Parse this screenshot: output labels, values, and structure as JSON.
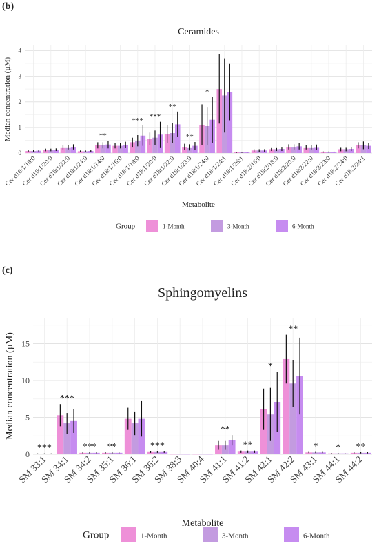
{
  "panels": [
    {
      "panel_label": "(b)",
      "chart_title": "Ceramides",
      "xlabel": "Metabolite",
      "ylabel": "Median concentration (µM)",
      "legend_title": "Group"
    },
    {
      "panel_label": "(c)",
      "chart_title": "Sphingomyelins",
      "xlabel": "Metabolite",
      "ylabel": "Median concentration (µM)",
      "legend_title": "Group"
    }
  ],
  "group_colors": {
    "1-Month": "#ee90d8",
    "3-Month": "#c39be0",
    "6-Month": "#c68cf0"
  },
  "chart_data": [
    {
      "type": "bar",
      "title": "Ceramides",
      "xlabel": "Metabolite",
      "ylabel": "Median concentration (µM)",
      "ylim": [
        0,
        4.2
      ],
      "yticks": [
        0,
        1,
        2,
        3,
        4
      ],
      "grid": true,
      "legend_position": "bottom",
      "categories": [
        "Cer d16:1/18:0",
        "Cer d16:1/20:0",
        "Cer d16:1/22:0",
        "Cer d16:1/24:0",
        "Cer d18:1/14:0",
        "Cer d18:1/16:0",
        "Cer d18:1/18:0",
        "Cer d18:1/20:0",
        "Cer d18:1/22:0",
        "Cer d18:1/23:0",
        "Cer d18:1/24:0",
        "Cer d18:1/24:1",
        "Cer d18:1/26:1",
        "Cer d18:2/16:0",
        "Cer d18:2/18:0",
        "Cer d18:2/20:0",
        "Cer d18:2/22:0",
        "Cer d18:2/23:0",
        "Cer d18:2/24:0",
        "Cer d18:2/24:1"
      ],
      "significance": [
        "",
        "",
        "",
        "",
        "**",
        "",
        "***",
        "***",
        "**",
        "**",
        "*",
        "",
        "",
        "",
        "",
        "",
        "",
        "",
        "",
        ""
      ],
      "series": [
        {
          "name": "1-Month",
          "values": [
            0.08,
            0.12,
            0.22,
            0.07,
            0.3,
            0.28,
            0.42,
            0.55,
            0.75,
            0.24,
            1.1,
            2.5,
            0.03,
            0.1,
            0.15,
            0.24,
            0.22,
            0.04,
            0.15,
            0.3
          ],
          "err": [
            0.04,
            0.05,
            0.08,
            0.03,
            0.12,
            0.1,
            0.18,
            0.25,
            0.35,
            0.12,
            0.8,
            1.35,
            0.02,
            0.05,
            0.07,
            0.1,
            0.08,
            0.02,
            0.08,
            0.12
          ]
        },
        {
          "name": "3-Month",
          "values": [
            0.08,
            0.12,
            0.22,
            0.07,
            0.3,
            0.28,
            0.48,
            0.6,
            0.78,
            0.22,
            1.05,
            2.25,
            0.03,
            0.1,
            0.15,
            0.24,
            0.22,
            0.04,
            0.15,
            0.3
          ],
          "err": [
            0.04,
            0.05,
            0.08,
            0.03,
            0.12,
            0.1,
            0.22,
            0.28,
            0.4,
            0.12,
            0.75,
            1.45,
            0.02,
            0.05,
            0.07,
            0.1,
            0.08,
            0.02,
            0.08,
            0.15
          ]
        },
        {
          "name": "6-Month",
          "values": [
            0.09,
            0.13,
            0.24,
            0.08,
            0.33,
            0.32,
            0.68,
            0.72,
            1.12,
            0.28,
            1.3,
            2.38,
            0.03,
            0.1,
            0.16,
            0.26,
            0.23,
            0.04,
            0.16,
            0.28
          ],
          "err": [
            0.04,
            0.05,
            0.1,
            0.03,
            0.15,
            0.12,
            0.4,
            0.5,
            0.5,
            0.15,
            0.9,
            1.1,
            0.02,
            0.05,
            0.08,
            0.12,
            0.1,
            0.02,
            0.08,
            0.12
          ]
        }
      ]
    },
    {
      "type": "bar",
      "title": "Sphingomyelins",
      "xlabel": "Metabolite",
      "ylabel": "Median concentration (µM)",
      "ylim": [
        0,
        18.5
      ],
      "yticks": [
        0,
        5,
        10,
        15
      ],
      "grid": true,
      "legend_position": "bottom",
      "categories": [
        "SM 33:1",
        "SM 34:1",
        "SM 34:2",
        "SM 35:1",
        "SM 36:1",
        "SM 36:2",
        "SM 38:3",
        "SM 40:4",
        "SM 41:1",
        "SM 41:2",
        "SM 42:1",
        "SM 42:2",
        "SM 43:1",
        "SM 44:1",
        "SM 44:2"
      ],
      "significance": [
        "***",
        "***",
        "***",
        "**",
        "",
        "***",
        "",
        "",
        "**",
        "**",
        "*",
        "**",
        "*",
        "*",
        "**"
      ],
      "series": [
        {
          "name": "1-Month",
          "values": [
            0.08,
            5.3,
            0.2,
            0.2,
            4.8,
            0.3,
            0.02,
            0.02,
            1.2,
            0.35,
            6.1,
            12.9,
            0.25,
            0.12,
            0.2
          ],
          "err": [
            0.04,
            1.5,
            0.08,
            0.08,
            1.5,
            0.1,
            0.01,
            0.01,
            0.6,
            0.15,
            2.8,
            3.3,
            0.08,
            0.05,
            0.08
          ]
        },
        {
          "name": "3-Month",
          "values": [
            0.08,
            4.2,
            0.2,
            0.2,
            4.2,
            0.3,
            0.02,
            0.02,
            1.2,
            0.35,
            5.4,
            9.6,
            0.25,
            0.12,
            0.2
          ],
          "err": [
            0.04,
            1.4,
            0.08,
            0.08,
            1.6,
            0.1,
            0.01,
            0.01,
            0.6,
            0.15,
            3.6,
            3.2,
            0.08,
            0.05,
            0.08
          ]
        },
        {
          "name": "6-Month",
          "values": [
            0.08,
            4.5,
            0.2,
            0.2,
            4.8,
            0.3,
            0.02,
            0.02,
            1.9,
            0.35,
            7.1,
            10.6,
            0.25,
            0.12,
            0.2
          ],
          "err": [
            0.04,
            1.6,
            0.08,
            0.08,
            2.4,
            0.1,
            0.01,
            0.01,
            0.7,
            0.15,
            4.1,
            5.2,
            0.08,
            0.05,
            0.08
          ]
        }
      ]
    }
  ]
}
